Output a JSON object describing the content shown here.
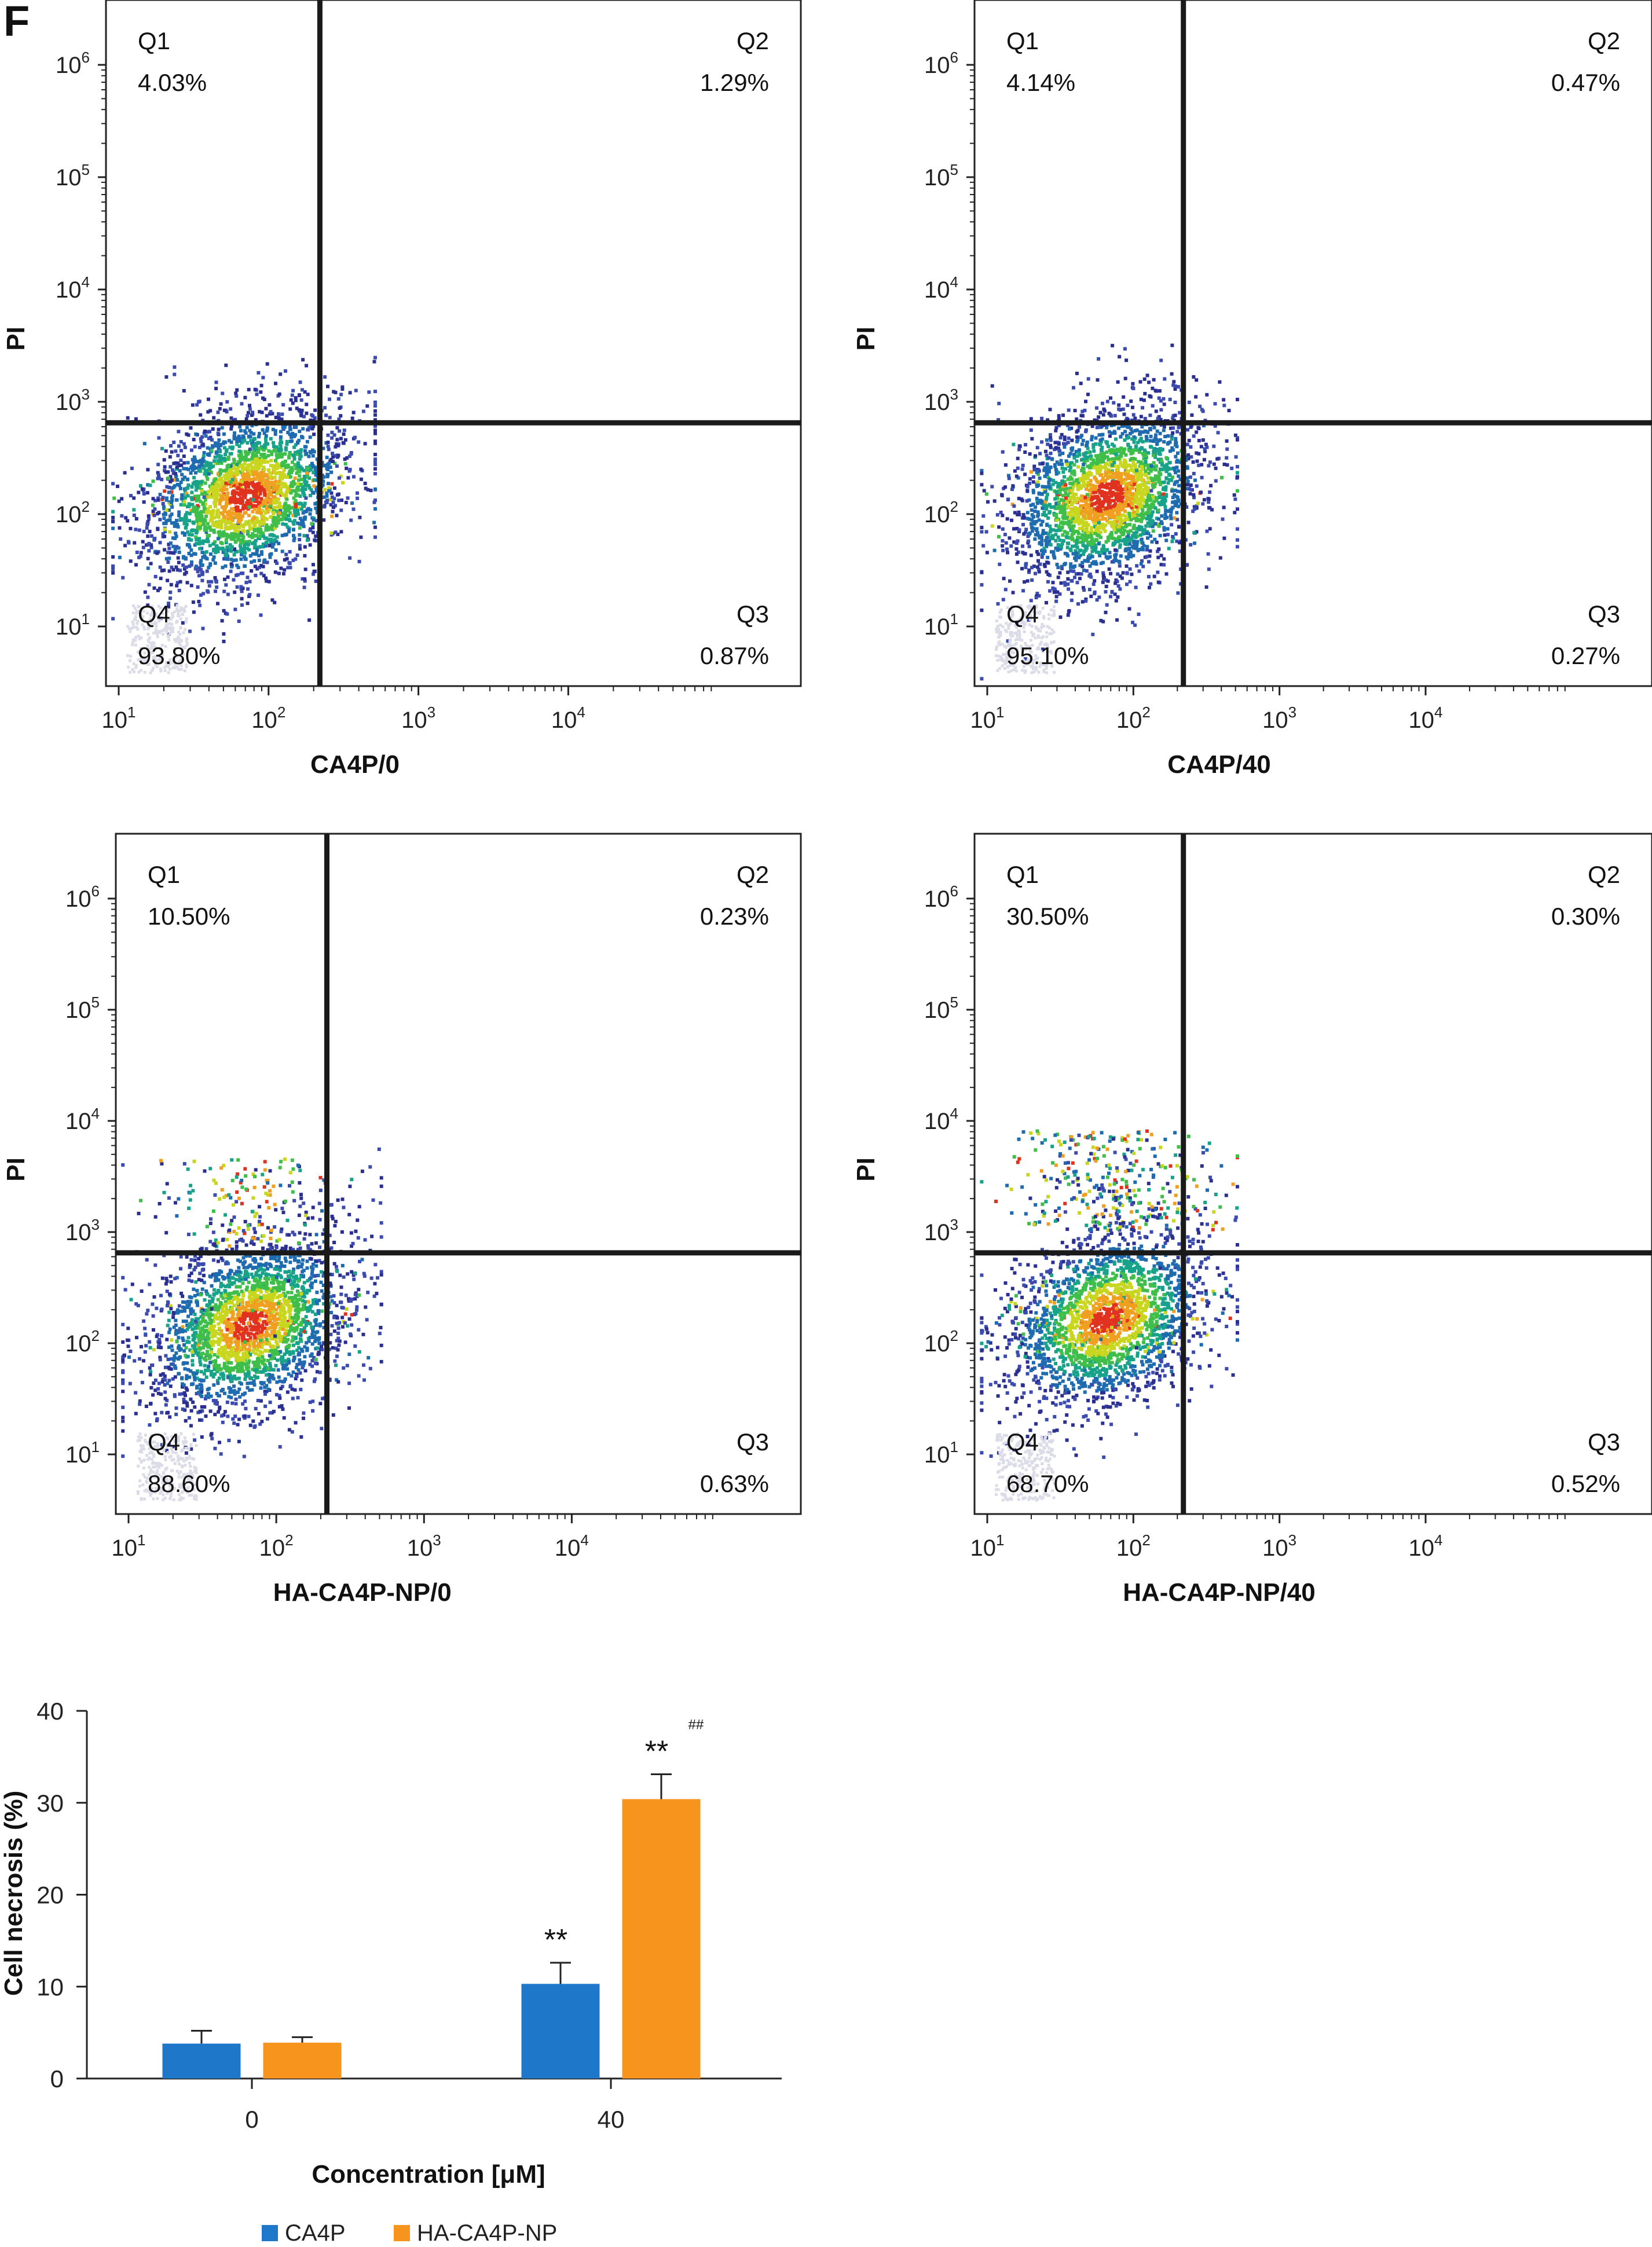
{
  "figure": {
    "panel_label": "F"
  },
  "colors": {
    "axis": "#222222",
    "gate": "#1a1a1a",
    "density": [
      "#dcdce8",
      "#2b2f8f",
      "#3b4bb0",
      "#1f6bb0",
      "#18a28a",
      "#3fbf4a",
      "#c8d620",
      "#f0a020",
      "#e0321e"
    ],
    "bar_CA4P": "#1f77c9",
    "bar_HA": "#f7941d"
  },
  "chart_data": [
    {
      "type": "scatter",
      "xlabel": "CA4P/0",
      "ylabel": "PI",
      "xscale": "log",
      "yscale": "log",
      "xlim": [
        10,
        10000
      ],
      "ylim": [
        10,
        1000000
      ],
      "x_ticks": [
        {
          "exp": "1"
        },
        {
          "exp": "2"
        },
        {
          "exp": "3"
        },
        {
          "exp": "4"
        }
      ],
      "y_ticks": [
        {
          "exp": "1"
        },
        {
          "exp": "2"
        },
        {
          "exp": "3"
        },
        {
          "exp": "4"
        },
        {
          "exp": "5"
        },
        {
          "exp": "6"
        }
      ],
      "gate": {
        "x": 220,
        "y": 650
      },
      "cluster": {
        "x": 70,
        "y": 150
      },
      "quadrants": [
        {
          "name": "Q1",
          "value": "4.03%"
        },
        {
          "name": "Q2",
          "value": "1.29%"
        },
        {
          "name": "Q3",
          "value": "0.87%"
        },
        {
          "name": "Q4",
          "value": "93.80%"
        }
      ]
    },
    {
      "type": "scatter",
      "xlabel": "CA4P/40",
      "ylabel": "PI",
      "xscale": "log",
      "yscale": "log",
      "xlim": [
        10,
        10000
      ],
      "ylim": [
        10,
        1000000
      ],
      "x_ticks": [
        {
          "exp": "1"
        },
        {
          "exp": "2"
        },
        {
          "exp": "3"
        },
        {
          "exp": "4"
        }
      ],
      "y_ticks": [
        {
          "exp": "1"
        },
        {
          "exp": "2"
        },
        {
          "exp": "3"
        },
        {
          "exp": "4"
        },
        {
          "exp": "5"
        },
        {
          "exp": "6"
        }
      ],
      "gate": {
        "x": 220,
        "y": 650
      },
      "cluster": {
        "x": 65,
        "y": 150
      },
      "quadrants": [
        {
          "name": "Q1",
          "value": "4.14%"
        },
        {
          "name": "Q2",
          "value": "0.47%"
        },
        {
          "name": "Q3",
          "value": "0.27%"
        },
        {
          "name": "Q4",
          "value": "95.10%"
        }
      ]
    },
    {
      "type": "scatter",
      "xlabel": "HA-CA4P-NP/0",
      "ylabel": "PI",
      "xscale": "log",
      "yscale": "log",
      "xlim": [
        10,
        10000
      ],
      "ylim": [
        10,
        1000000
      ],
      "x_ticks": [
        {
          "exp": "1"
        },
        {
          "exp": "2"
        },
        {
          "exp": "3"
        },
        {
          "exp": "4"
        }
      ],
      "y_ticks": [
        {
          "exp": "1"
        },
        {
          "exp": "2"
        },
        {
          "exp": "3"
        },
        {
          "exp": "4"
        },
        {
          "exp": "5"
        },
        {
          "exp": "6"
        }
      ],
      "gate": {
        "x": 220,
        "y": 650
      },
      "cluster": {
        "x": 65,
        "y": 150
      },
      "quadrants": [
        {
          "name": "Q1",
          "value": "10.50%"
        },
        {
          "name": "Q2",
          "value": "0.23%"
        },
        {
          "name": "Q3",
          "value": "0.63%"
        },
        {
          "name": "Q4",
          "value": "88.60%"
        }
      ]
    },
    {
      "type": "scatter",
      "xlabel": "HA-CA4P-NP/40",
      "ylabel": "PI",
      "xscale": "log",
      "yscale": "log",
      "xlim": [
        10,
        10000
      ],
      "ylim": [
        10,
        1000000
      ],
      "x_ticks": [
        {
          "exp": "1"
        },
        {
          "exp": "2"
        },
        {
          "exp": "3"
        },
        {
          "exp": "4"
        }
      ],
      "y_ticks": [
        {
          "exp": "1"
        },
        {
          "exp": "2"
        },
        {
          "exp": "3"
        },
        {
          "exp": "4"
        },
        {
          "exp": "5"
        },
        {
          "exp": "6"
        }
      ],
      "gate": {
        "x": 220,
        "y": 650
      },
      "cluster": {
        "x": 65,
        "y": 170
      },
      "quadrants": [
        {
          "name": "Q1",
          "value": "30.50%"
        },
        {
          "name": "Q2",
          "value": "0.30%"
        },
        {
          "name": "Q3",
          "value": "0.52%"
        },
        {
          "name": "Q4",
          "value": "68.70%"
        }
      ]
    },
    {
      "type": "bar",
      "ylabel": "Cell necrosis (%)",
      "xlabel": "Concentration [μM]",
      "categories": [
        "0",
        "40"
      ],
      "ylim": [
        0,
        40
      ],
      "y_ticks": [
        "0",
        "10",
        "20",
        "30",
        "40"
      ],
      "series": [
        {
          "name": "CA4P",
          "values": [
            3.8,
            10.3
          ],
          "errors": [
            1.4,
            2.3
          ],
          "annotations": [
            "",
            "**"
          ]
        },
        {
          "name": "HA-CA4P-NP",
          "values": [
            3.9,
            30.4
          ],
          "errors": [
            0.6,
            2.7
          ],
          "annotations": [
            "",
            "**"
          ],
          "superscripts": [
            "",
            "##"
          ]
        }
      ],
      "legend": "bottom"
    }
  ]
}
